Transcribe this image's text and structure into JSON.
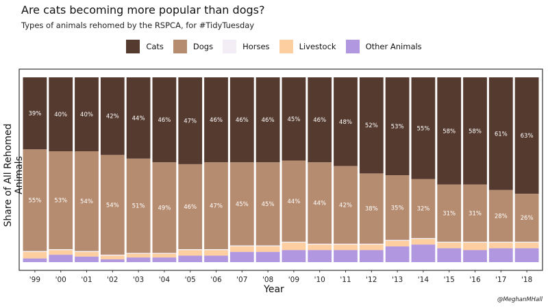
{
  "title": "Are cats becoming more popular than dogs?",
  "subtitle": "Types of animals rehomed by the RSPCA, for #TidyTuesday",
  "caption": "@MeghanMHall",
  "chart_data": {
    "type": "bar",
    "stacked": true,
    "normalized": true,
    "xlabel": "Year",
    "ylabel": "Share of All Rehomed Animals",
    "legend_position": "top",
    "categories": [
      "'99",
      "'00",
      "'01",
      "'02",
      "'03",
      "'04",
      "'05",
      "'06",
      "'07",
      "'08",
      "'09",
      "'10",
      "'11",
      "'12",
      "'13",
      "'14",
      "'15",
      "'16",
      "'17",
      "'18"
    ],
    "series": [
      {
        "name": "Cats",
        "color": "#553a2f",
        "values": [
          39,
          40,
          40,
          42,
          44,
          46,
          47,
          46,
          46,
          46,
          45,
          46,
          48,
          52,
          53,
          55,
          58,
          58,
          61,
          63
        ],
        "labels": [
          "39%",
          "40%",
          "40%",
          "42%",
          "44%",
          "46%",
          "47%",
          "46%",
          "46%",
          "46%",
          "45%",
          "46%",
          "48%",
          "52%",
          "53%",
          "55%",
          "58%",
          "58%",
          "61%",
          "63%"
        ]
      },
      {
        "name": "Dogs",
        "color": "#b68c70",
        "values": [
          55,
          53,
          54,
          54,
          51,
          49,
          46,
          47,
          45,
          45,
          44,
          44,
          42,
          38,
          35,
          32,
          31,
          31,
          28,
          26
        ],
        "labels": [
          "55%",
          "53%",
          "54%",
          "54%",
          "51%",
          "49%",
          "46%",
          "47%",
          "45%",
          "45%",
          "44%",
          "44%",
          "42%",
          "38%",
          "35%",
          "32%",
          "31%",
          "31%",
          "28%",
          "26%"
        ]
      },
      {
        "name": "Horses",
        "color": "#f3eef6",
        "values": [
          0.5,
          0.5,
          0.5,
          0.5,
          0.5,
          0.5,
          0.5,
          0.5,
          0.5,
          0.5,
          0.5,
          0.5,
          0.5,
          0.5,
          0.5,
          0.5,
          0.5,
          0.5,
          0.5,
          0.5
        ]
      },
      {
        "name": "Livestock",
        "color": "#fdcfa0",
        "values": [
          3.5,
          2.5,
          2.5,
          2,
          2,
          2,
          3,
          3,
          3,
          3,
          4,
          3,
          3,
          3,
          3,
          3,
          3,
          4,
          3,
          3
        ]
      },
      {
        "name": "Other Animals",
        "color": "#b197e0",
        "values": [
          2,
          4,
          3,
          1.5,
          2.5,
          2.5,
          3.5,
          3.5,
          5.5,
          5.5,
          6.5,
          6.5,
          6.5,
          6.5,
          8.5,
          9.5,
          7.5,
          6.5,
          7.5,
          7.5
        ]
      }
    ],
    "ylim": [
      0,
      100
    ]
  }
}
